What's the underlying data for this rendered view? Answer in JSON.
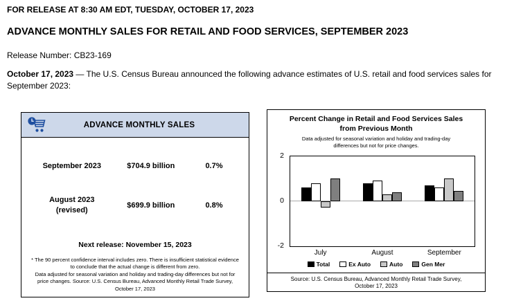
{
  "page": {
    "release_line": "FOR RELEASE AT 8:30 AM EDT, TUESDAY, OCTOBER 17, 2023",
    "title": "ADVANCE MONTHLY SALES FOR RETAIL AND FOOD SERVICES, SEPTEMBER 2023",
    "release_number": "Release Number: CB23-169",
    "intro_bold": "October 17, 2023",
    "intro_rest": " — The U.S. Census Bureau announced the following advance estimates of U.S. retail and food services sales for September 2023:"
  },
  "colors": {
    "sales_header_bg": "#cdd8ea",
    "icon_blue": "#1f4fa0"
  },
  "sales_box": {
    "header": "ADVANCE MONTHLY SALES",
    "icon": "shopping-cart-clock-icon",
    "rows": [
      {
        "period": "September 2023",
        "value": "$704.9 billion",
        "change": "0.7%"
      },
      {
        "period": "August 2023\n(revised)",
        "value": "$699.9 billion",
        "change": "0.8%"
      }
    ],
    "next_release": "Next release: November 15, 2023",
    "footnote": "* The 90 percent confidence interval includes zero. There is insufficient statistical evidence to conclude that the actual change is different from zero.\nData adjusted for seasonal variation and holiday and trading-day differences but not for price changes. Source: U.S. Census Bureau, Advanced Monthly Retail Trade Survey, October 17, 2023"
  },
  "chart_data": {
    "type": "bar",
    "title": "Percent Change in Retail and Food Services Sales from Previous Month",
    "subtitle": "Data adjusted for seasonal variation and holiday and trading-day differences but not for price changes.",
    "categories": [
      "July",
      "August",
      "September"
    ],
    "series": [
      {
        "name": "Total",
        "color": "#000000",
        "values": [
          0.6,
          0.8,
          0.7
        ]
      },
      {
        "name": "Ex Auto",
        "color": "#ffffff",
        "values": [
          0.8,
          0.9,
          0.6
        ]
      },
      {
        "name": "Auto",
        "color": "#c8c8c8",
        "values": [
          -0.3,
          0.3,
          1.0
        ]
      },
      {
        "name": "Gen Mer",
        "color": "#7f7f7f",
        "values": [
          1.0,
          0.4,
          0.45
        ]
      }
    ],
    "ylim": [
      -2,
      2
    ],
    "yticks": [
      2,
      0,
      -2
    ],
    "grid": "zero-line-only",
    "legend_position": "bottom",
    "source": "Source: U.S. Census Bureau, Advanced Monthly Retail Trade Survey,\nOctober 17, 2023"
  }
}
